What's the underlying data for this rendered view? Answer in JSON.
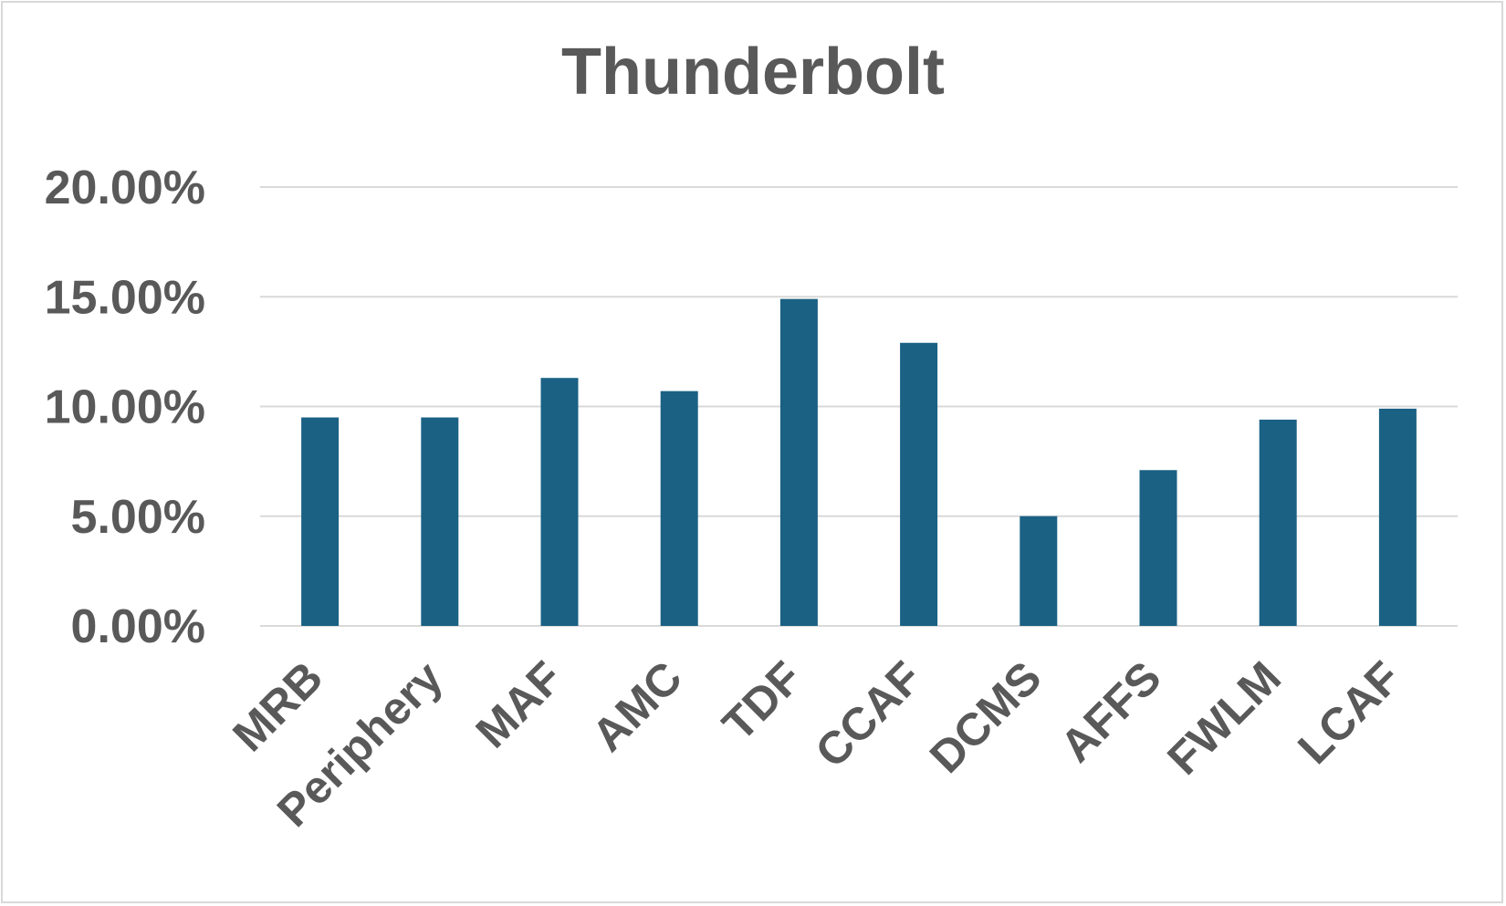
{
  "chart_data": {
    "type": "bar",
    "title": "Thunderbolt",
    "xlabel": "",
    "ylabel": "",
    "categories": [
      "MRB",
      "Periphery",
      "MAF",
      "AMC",
      "TDF",
      "CCAF",
      "DCMS",
      "AFFS",
      "FWLM",
      "LCAF"
    ],
    "values": [
      0.095,
      0.095,
      0.113,
      0.107,
      0.149,
      0.129,
      0.05,
      0.071,
      0.094,
      0.099
    ],
    "ylim": [
      0,
      0.2
    ],
    "yticks": [
      0,
      0.05,
      0.1,
      0.15,
      0.2
    ],
    "ytick_labels": [
      "0.00%",
      "5.00%",
      "10.00%",
      "15.00%",
      "20.00%"
    ],
    "grid": true,
    "legend": "none",
    "colors": {
      "bar": "#1a6184",
      "grid": "#d9d9d9",
      "text": "#595959",
      "border": "#d9d9d9"
    }
  }
}
